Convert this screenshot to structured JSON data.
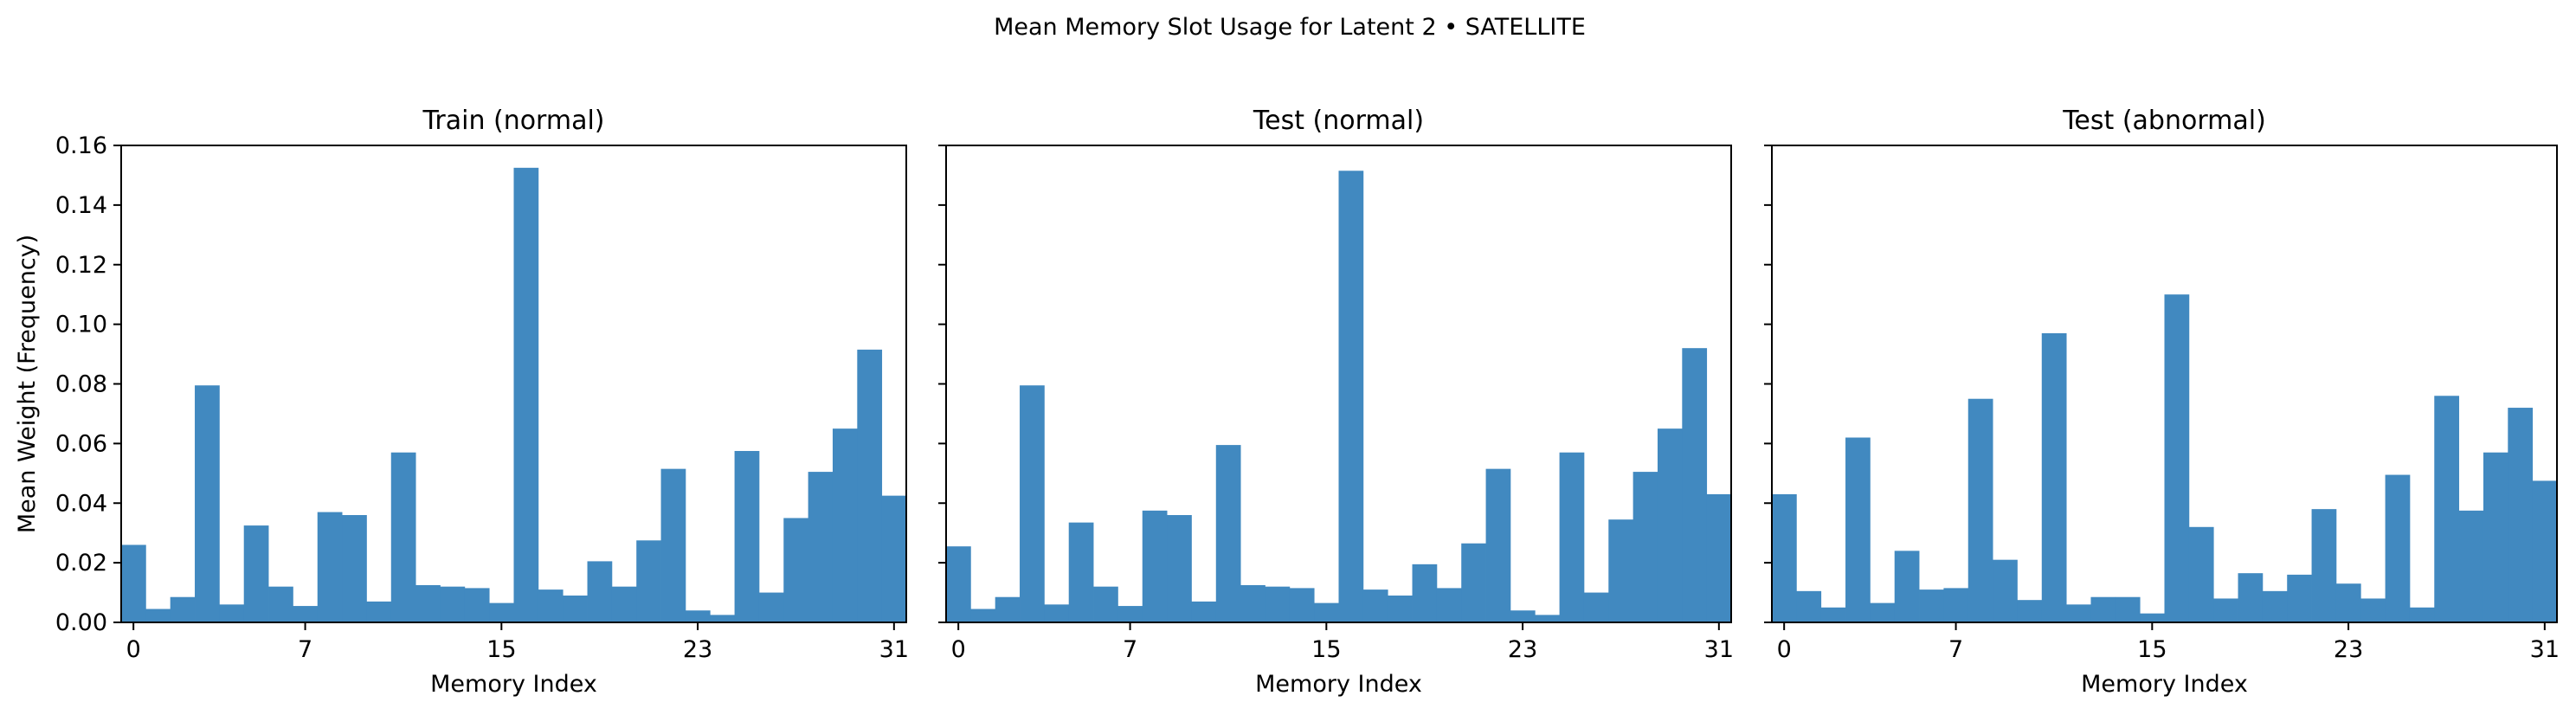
{
  "figure": {
    "title": "Mean Memory Slot Usage for Latent 2 • SATELLITE",
    "bar_color": "#4189c0"
  },
  "chart_data": [
    {
      "type": "bar",
      "title": "Train (normal)",
      "xlabel": "Memory Index",
      "ylabel": "Mean Weight (Frequency)",
      "ylim": [
        0,
        0.16
      ],
      "yticks": [
        "0.00",
        "0.02",
        "0.04",
        "0.06",
        "0.08",
        "0.10",
        "0.12",
        "0.14",
        "0.16"
      ],
      "xticks": [
        0,
        7,
        15,
        23,
        31
      ],
      "categories": [
        0,
        1,
        2,
        3,
        4,
        5,
        6,
        7,
        8,
        9,
        10,
        11,
        12,
        13,
        14,
        15,
        16,
        17,
        18,
        19,
        20,
        21,
        22,
        23,
        24,
        25,
        26,
        27,
        28,
        29,
        30,
        31
      ],
      "values": [
        0.026,
        0.0045,
        0.0085,
        0.0795,
        0.006,
        0.0325,
        0.012,
        0.0055,
        0.037,
        0.036,
        0.007,
        0.057,
        0.0125,
        0.012,
        0.0115,
        0.0065,
        0.1525,
        0.011,
        0.009,
        0.0205,
        0.012,
        0.0275,
        0.0515,
        0.004,
        0.0025,
        0.0575,
        0.01,
        0.035,
        0.0505,
        0.065,
        0.0915,
        0.0425
      ]
    },
    {
      "type": "bar",
      "title": "Test (normal)",
      "xlabel": "Memory Index",
      "ylim": [
        0,
        0.16
      ],
      "xticks": [
        0,
        7,
        15,
        23,
        31
      ],
      "categories": [
        0,
        1,
        2,
        3,
        4,
        5,
        6,
        7,
        8,
        9,
        10,
        11,
        12,
        13,
        14,
        15,
        16,
        17,
        18,
        19,
        20,
        21,
        22,
        23,
        24,
        25,
        26,
        27,
        28,
        29,
        30,
        31
      ],
      "values": [
        0.0255,
        0.0045,
        0.0085,
        0.0795,
        0.006,
        0.0335,
        0.012,
        0.0055,
        0.0375,
        0.036,
        0.007,
        0.0595,
        0.0125,
        0.012,
        0.0115,
        0.0065,
        0.1515,
        0.011,
        0.009,
        0.0195,
        0.0115,
        0.0265,
        0.0515,
        0.004,
        0.0025,
        0.057,
        0.01,
        0.0345,
        0.0505,
        0.065,
        0.092,
        0.043
      ]
    },
    {
      "type": "bar",
      "title": "Test (abnormal)",
      "xlabel": "Memory Index",
      "ylim": [
        0,
        0.16
      ],
      "xticks": [
        0,
        7,
        15,
        23,
        31
      ],
      "categories": [
        0,
        1,
        2,
        3,
        4,
        5,
        6,
        7,
        8,
        9,
        10,
        11,
        12,
        13,
        14,
        15,
        16,
        17,
        18,
        19,
        20,
        21,
        22,
        23,
        24,
        25,
        26,
        27,
        28,
        29,
        30,
        31
      ],
      "values": [
        0.043,
        0.0105,
        0.005,
        0.062,
        0.0065,
        0.024,
        0.011,
        0.0115,
        0.075,
        0.021,
        0.0075,
        0.097,
        0.006,
        0.0085,
        0.0085,
        0.003,
        0.11,
        0.032,
        0.008,
        0.0165,
        0.0105,
        0.016,
        0.038,
        0.013,
        0.008,
        0.0495,
        0.005,
        0.076,
        0.0375,
        0.057,
        0.072,
        0.0475
      ]
    }
  ]
}
